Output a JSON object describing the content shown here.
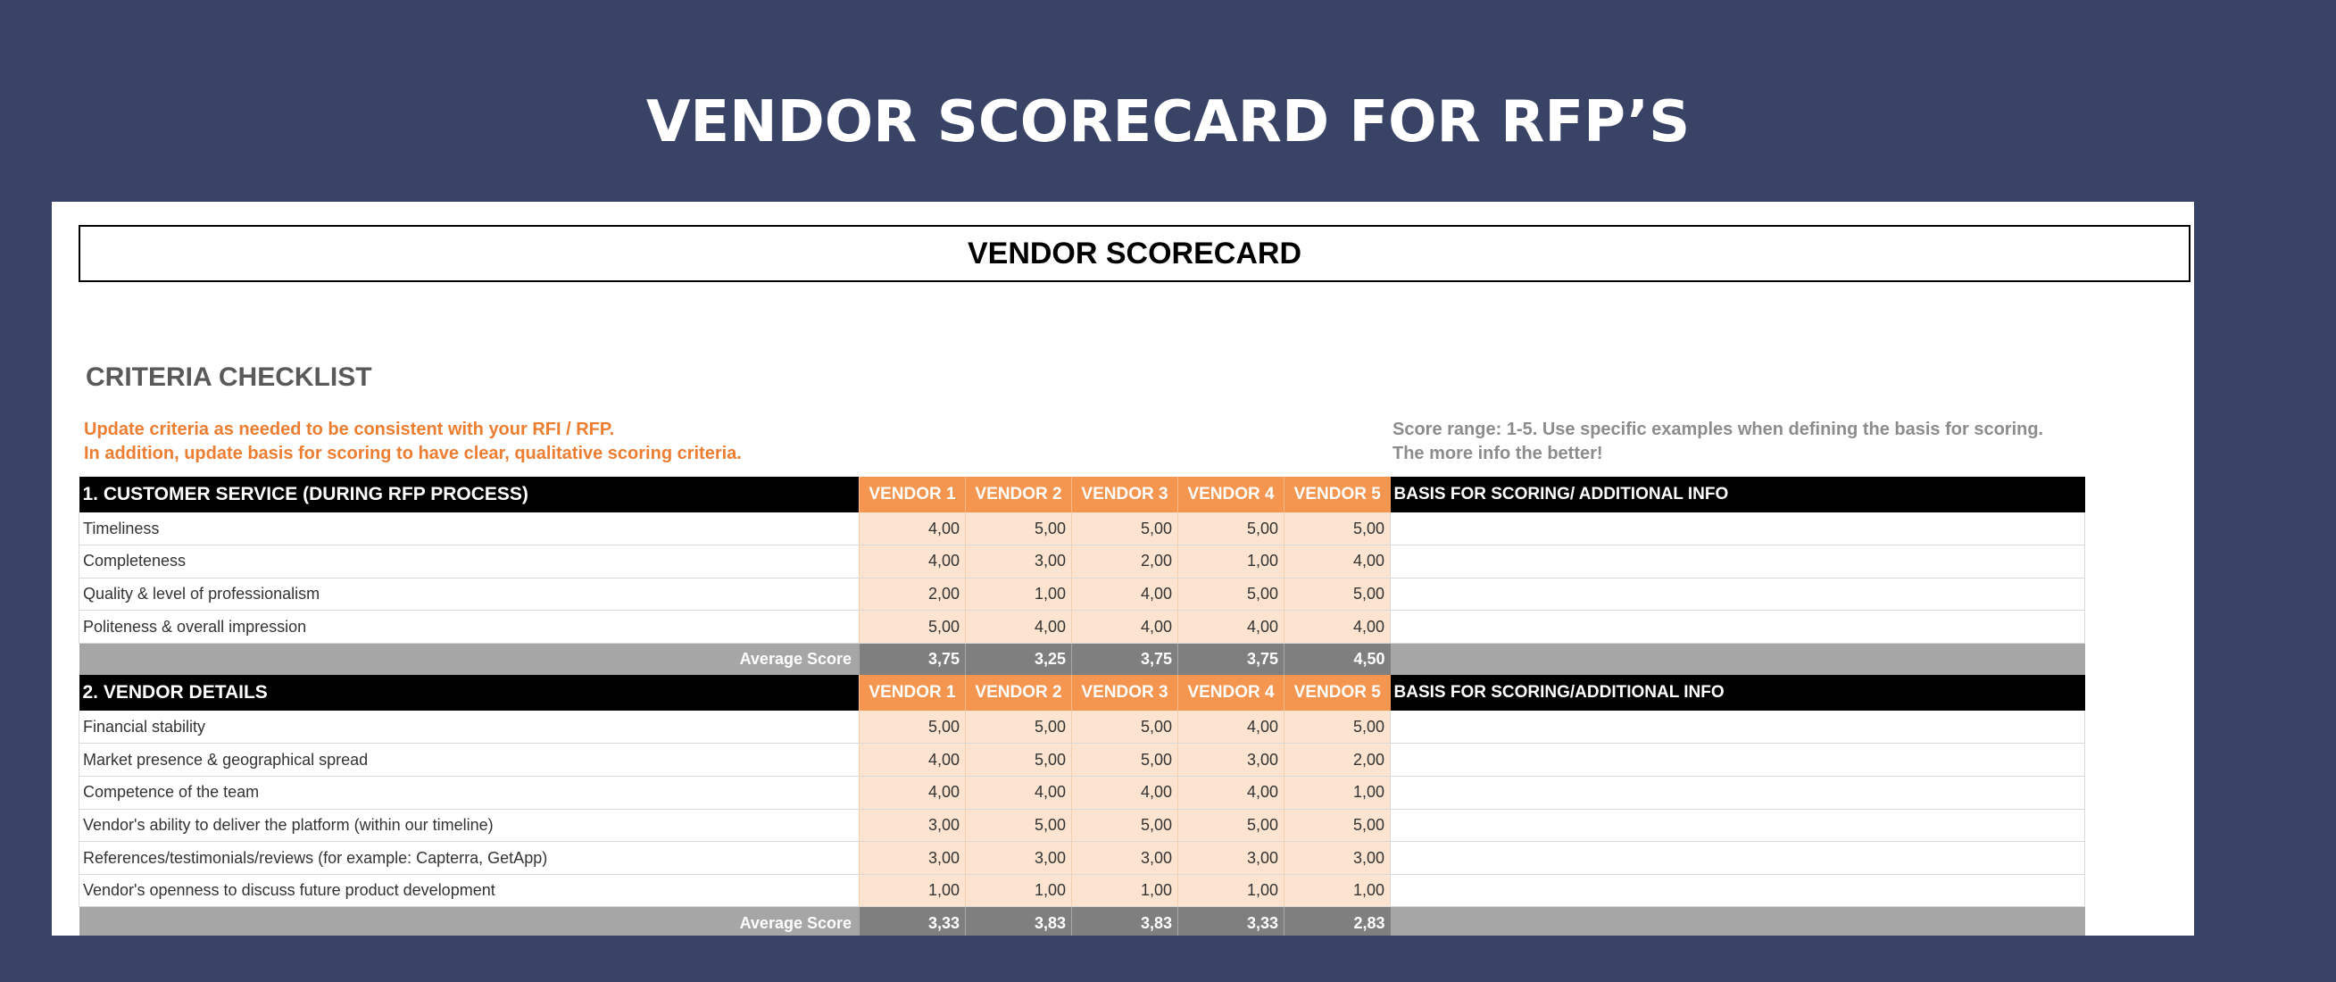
{
  "page_title": "VENDOR SCORECARD FOR RFP’S",
  "sheet": {
    "title": "VENDOR SCORECARD",
    "criteria_heading": "CRITERIA CHECKLIST",
    "note_left_1": "Update criteria as needed to be consistent with your RFI / RFP.",
    "note_left_2": "In addition, update basis for scoring to have clear, qualitative scoring criteria.",
    "note_right": "Score range: 1-5. Use specific examples when defining the basis for scoring. The more info the better!"
  },
  "sections": [
    {
      "title": "1. CUSTOMER SERVICE (DURING RFP PROCESS)",
      "vendors": [
        "VENDOR 1",
        "VENDOR 2",
        "VENDOR 3",
        "VENDOR 4",
        "VENDOR 5"
      ],
      "basis_header": "BASIS FOR SCORING/ ADDITIONAL INFO",
      "rows": [
        {
          "label": "Timeliness",
          "scores": [
            "4,00",
            "5,00",
            "5,00",
            "5,00",
            "5,00"
          ]
        },
        {
          "label": "Completeness",
          "scores": [
            "4,00",
            "3,00",
            "2,00",
            "1,00",
            "4,00"
          ]
        },
        {
          "label": "Quality & level of professionalism",
          "scores": [
            "2,00",
            "1,00",
            "4,00",
            "5,00",
            "5,00"
          ]
        },
        {
          "label": "Politeness & overall impression",
          "scores": [
            "5,00",
            "4,00",
            "4,00",
            "4,00",
            "4,00"
          ]
        }
      ],
      "average_label": "Average Score",
      "averages": [
        "3,75",
        "3,25",
        "3,75",
        "3,75",
        "4,50"
      ]
    },
    {
      "title": "2. VENDOR DETAILS",
      "vendors": [
        "VENDOR 1",
        "VENDOR 2",
        "VENDOR 3",
        "VENDOR 4",
        "VENDOR 5"
      ],
      "basis_header": "BASIS FOR SCORING/ADDITIONAL INFO",
      "rows": [
        {
          "label": "Financial stability",
          "scores": [
            "5,00",
            "5,00",
            "5,00",
            "4,00",
            "5,00"
          ]
        },
        {
          "label": "Market presence & geographical spread",
          "scores": [
            "4,00",
            "5,00",
            "5,00",
            "3,00",
            "2,00"
          ]
        },
        {
          "label": "Competence of the team",
          "scores": [
            "4,00",
            "4,00",
            "4,00",
            "4,00",
            "1,00"
          ]
        },
        {
          "label": "Vendor's ability to deliver the platform (within our timeline)",
          "scores": [
            "3,00",
            "5,00",
            "5,00",
            "5,00",
            "5,00"
          ]
        },
        {
          "label": "References/testimonials/reviews (for example: Capterra, GetApp)",
          "scores": [
            "3,00",
            "3,00",
            "3,00",
            "3,00",
            "3,00"
          ]
        },
        {
          "label": "Vendor's openness to discuss future product development",
          "scores": [
            "1,00",
            "1,00",
            "1,00",
            "1,00",
            "1,00"
          ]
        }
      ],
      "average_label": "Average Score",
      "averages": [
        "3,33",
        "3,83",
        "3,83",
        "3,33",
        "2,83"
      ]
    }
  ]
}
